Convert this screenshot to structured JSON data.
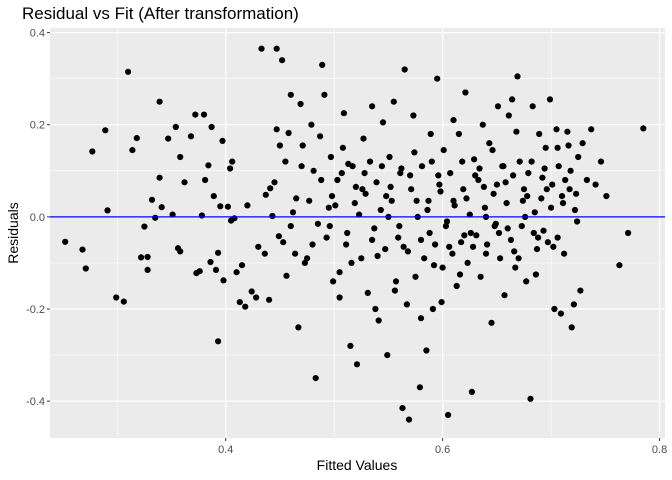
{
  "chart_data": {
    "type": "scatter",
    "title": "Residual vs Fit (After transformation)",
    "xlabel": "Fitted Values",
    "ylabel": "Residuals",
    "xlim": [
      0.238,
      0.805
    ],
    "ylim": [
      -0.48,
      0.41
    ],
    "x_ticks": [
      {
        "value": 0.4,
        "label": "0.4"
      },
      {
        "value": 0.6,
        "label": "0.6"
      },
      {
        "value": 0.8,
        "label": "0.8"
      }
    ],
    "y_ticks": [
      {
        "value": -0.4,
        "label": "-0.4"
      },
      {
        "value": -0.2,
        "label": "-0.2"
      },
      {
        "value": 0.0,
        "label": "0.0"
      },
      {
        "value": 0.2,
        "label": "0.2"
      },
      {
        "value": 0.4,
        "label": "0.4"
      }
    ],
    "grid": true,
    "panel_background": "#ebebeb",
    "grid_color": "#ffffff",
    "point_color": "#000000",
    "reference_line": {
      "y": 0.0,
      "color": "#0000ff"
    },
    "points": [
      [
        0.252,
        -0.054
      ],
      [
        0.268,
        -0.071
      ],
      [
        0.271,
        -0.112
      ],
      [
        0.277,
        0.142
      ],
      [
        0.289,
        0.188
      ],
      [
        0.291,
        0.014
      ],
      [
        0.299,
        -0.175
      ],
      [
        0.306,
        -0.184
      ],
      [
        0.31,
        0.315
      ],
      [
        0.314,
        0.145
      ],
      [
        0.318,
        0.171
      ],
      [
        0.322,
        -0.088
      ],
      [
        0.325,
        -0.021
      ],
      [
        0.328,
        -0.115
      ],
      [
        0.328,
        -0.087
      ],
      [
        0.332,
        0.037
      ],
      [
        0.335,
        -0.002
      ],
      [
        0.339,
        0.085
      ],
      [
        0.339,
        0.25
      ],
      [
        0.341,
        0.021
      ],
      [
        0.347,
        0.17
      ],
      [
        0.351,
        0.005
      ],
      [
        0.354,
        0.195
      ],
      [
        0.356,
        -0.068
      ],
      [
        0.358,
        -0.075
      ],
      [
        0.358,
        0.13
      ],
      [
        0.362,
        0.075
      ],
      [
        0.368,
        0.175
      ],
      [
        0.372,
        0.222
      ],
      [
        0.373,
        -0.122
      ],
      [
        0.376,
        -0.118
      ],
      [
        0.378,
        0.003
      ],
      [
        0.38,
        0.222
      ],
      [
        0.381,
        0.08
      ],
      [
        0.384,
        0.112
      ],
      [
        0.386,
        -0.098
      ],
      [
        0.387,
        0.195
      ],
      [
        0.389,
        0.045
      ],
      [
        0.391,
        -0.115
      ],
      [
        0.393,
        -0.078
      ],
      [
        0.393,
        -0.27
      ],
      [
        0.395,
        0.023
      ],
      [
        0.397,
        0.165
      ],
      [
        0.398,
        -0.138
      ],
      [
        0.402,
        0.022
      ],
      [
        0.404,
        0.105
      ],
      [
        0.405,
        -0.008
      ],
      [
        0.406,
        0.12
      ],
      [
        0.408,
        -0.003
      ],
      [
        0.41,
        -0.12
      ],
      [
        0.413,
        -0.185
      ],
      [
        0.415,
        -0.105
      ],
      [
        0.418,
        -0.195
      ],
      [
        0.42,
        0.025
      ],
      [
        0.424,
        -0.162
      ],
      [
        0.428,
        -0.175
      ],
      [
        0.43,
        -0.065
      ],
      [
        0.433,
        0.365
      ],
      [
        0.436,
        -0.08
      ],
      [
        0.437,
        0.048
      ],
      [
        0.44,
        -0.18
      ],
      [
        0.441,
        0.062
      ],
      [
        0.443,
        0.002
      ],
      [
        0.445,
        0.075
      ],
      [
        0.447,
        0.365
      ],
      [
        0.447,
        0.19
      ],
      [
        0.449,
        -0.042
      ],
      [
        0.45,
        0.155
      ],
      [
        0.452,
        0.34
      ],
      [
        0.453,
        -0.055
      ],
      [
        0.455,
        0.12
      ],
      [
        0.456,
        -0.128
      ],
      [
        0.458,
        0.182
      ],
      [
        0.46,
        0.265
      ],
      [
        0.462,
        0.01
      ],
      [
        0.464,
        -0.08
      ],
      [
        0.465,
        0.04
      ],
      [
        0.467,
        -0.24
      ],
      [
        0.469,
        0.245
      ],
      [
        0.471,
        0.155
      ],
      [
        0.473,
        -0.1
      ],
      [
        0.475,
        -0.09
      ],
      [
        0.477,
        0.035
      ],
      [
        0.479,
        0.2
      ],
      [
        0.481,
        0.1
      ],
      [
        0.483,
        -0.35
      ],
      [
        0.485,
        -0.015
      ],
      [
        0.487,
        0.175
      ],
      [
        0.489,
        0.33
      ],
      [
        0.491,
        0.265
      ],
      [
        0.493,
        -0.045
      ],
      [
        0.495,
        0.02
      ],
      [
        0.497,
        0.13
      ],
      [
        0.499,
        -0.14
      ],
      [
        0.501,
        0.025
      ],
      [
        0.503,
        0.08
      ],
      [
        0.505,
        -0.175
      ],
      [
        0.507,
        0.095
      ],
      [
        0.509,
        0.225
      ],
      [
        0.511,
        -0.06
      ],
      [
        0.513,
        0.115
      ],
      [
        0.515,
        -0.28
      ],
      [
        0.517,
        0.11
      ],
      [
        0.519,
        0.03
      ],
      [
        0.521,
        -0.32
      ],
      [
        0.523,
        0.005
      ],
      [
        0.525,
        -0.09
      ],
      [
        0.527,
        0.17
      ],
      [
        0.529,
        0.05
      ],
      [
        0.531,
        -0.165
      ],
      [
        0.533,
        0.12
      ],
      [
        0.535,
        0.24
      ],
      [
        0.537,
        -0.025
      ],
      [
        0.539,
        0.075
      ],
      [
        0.541,
        -0.225
      ],
      [
        0.543,
        0.015
      ],
      [
        0.545,
        0.205
      ],
      [
        0.547,
        -0.07
      ],
      [
        0.549,
        -0.3
      ],
      [
        0.551,
        0.13
      ],
      [
        0.553,
        0.035
      ],
      [
        0.555,
        0.25
      ],
      [
        0.557,
        -0.14
      ],
      [
        0.559,
        -0.045
      ],
      [
        0.561,
        0.095
      ],
      [
        0.563,
        -0.415
      ],
      [
        0.565,
        0.32
      ],
      [
        0.567,
        -0.19
      ],
      [
        0.569,
        -0.44
      ],
      [
        0.571,
        0.06
      ],
      [
        0.573,
        0.22
      ],
      [
        0.575,
        -0.13
      ],
      [
        0.577,
        0.0
      ],
      [
        0.579,
        -0.37
      ],
      [
        0.581,
        0.11
      ],
      [
        0.583,
        -0.09
      ],
      [
        0.585,
        -0.29
      ],
      [
        0.587,
        0.035
      ],
      [
        0.589,
        0.18
      ],
      [
        0.591,
        -0.2
      ],
      [
        0.593,
        -0.06
      ],
      [
        0.595,
        0.3
      ],
      [
        0.597,
        0.07
      ],
      [
        0.599,
        -0.185
      ],
      [
        0.601,
        0.145
      ],
      [
        0.603,
        -0.02
      ],
      [
        0.605,
        -0.43
      ],
      [
        0.607,
        0.095
      ],
      [
        0.609,
        -0.08
      ],
      [
        0.611,
        0.025
      ],
      [
        0.613,
        -0.15
      ],
      [
        0.615,
        0.18
      ],
      [
        0.617,
        -0.055
      ],
      [
        0.619,
        0.06
      ],
      [
        0.621,
        0.27
      ],
      [
        0.623,
        -0.1
      ],
      [
        0.625,
        0.005
      ],
      [
        0.627,
        -0.38
      ],
      [
        0.629,
        0.125
      ],
      [
        0.631,
        -0.04
      ],
      [
        0.633,
        0.08
      ],
      [
        0.635,
        -0.13
      ],
      [
        0.637,
        0.2
      ],
      [
        0.639,
        0.02
      ],
      [
        0.641,
        -0.06
      ],
      [
        0.643,
        0.16
      ],
      [
        0.645,
        -0.23
      ],
      [
        0.647,
        0.05
      ],
      [
        0.649,
        -0.015
      ],
      [
        0.651,
        0.24
      ],
      [
        0.653,
        -0.09
      ],
      [
        0.655,
        0.11
      ],
      [
        0.657,
        -0.17
      ],
      [
        0.659,
        0.03
      ],
      [
        0.661,
        0.22
      ],
      [
        0.663,
        -0.05
      ],
      [
        0.665,
        0.09
      ],
      [
        0.667,
        -0.11
      ],
      [
        0.669,
        0.305
      ],
      [
        0.671,
        0.12
      ],
      [
        0.673,
        -0.02
      ],
      [
        0.675,
        0.06
      ],
      [
        0.677,
        -0.14
      ],
      [
        0.679,
        0.095
      ],
      [
        0.681,
        -0.395
      ],
      [
        0.683,
        0.24
      ],
      [
        0.685,
        0.01
      ],
      [
        0.687,
        -0.07
      ],
      [
        0.689,
        0.18
      ],
      [
        0.691,
        0.04
      ],
      [
        0.693,
        -0.03
      ],
      [
        0.695,
        0.15
      ],
      [
        0.697,
        -0.055
      ],
      [
        0.699,
        0.255
      ],
      [
        0.701,
        0.07
      ],
      [
        0.703,
        -0.2
      ],
      [
        0.705,
        0.19
      ],
      [
        0.707,
        0.11
      ],
      [
        0.709,
        -0.21
      ],
      [
        0.711,
        0.03
      ],
      [
        0.713,
        0.08
      ],
      [
        0.715,
        0.185
      ],
      [
        0.717,
        0.06
      ],
      [
        0.719,
        -0.24
      ],
      [
        0.721,
        -0.19
      ],
      [
        0.723,
        0.05
      ],
      [
        0.725,
        0.13
      ],
      [
        0.727,
        -0.16
      ],
      [
        0.729,
        0.16
      ],
      [
        0.733,
        0.08
      ],
      [
        0.737,
        0.19
      ],
      [
        0.741,
        0.07
      ],
      [
        0.746,
        0.12
      ],
      [
        0.751,
        0.045
      ],
      [
        0.763,
        -0.105
      ],
      [
        0.771,
        -0.035
      ],
      [
        0.785,
        0.192
      ],
      [
        0.505,
        -0.12
      ],
      [
        0.52,
        0.065
      ],
      [
        0.535,
        -0.05
      ],
      [
        0.548,
        0.045
      ],
      [
        0.556,
        -0.16
      ],
      [
        0.562,
        0.105
      ],
      [
        0.568,
        -0.075
      ],
      [
        0.574,
        0.14
      ],
      [
        0.58,
        -0.22
      ],
      [
        0.586,
        0.015
      ],
      [
        0.592,
        -0.105
      ],
      [
        0.598,
        0.055
      ],
      [
        0.604,
        -0.01
      ],
      [
        0.61,
        0.21
      ],
      [
        0.616,
        -0.125
      ],
      [
        0.622,
        0.04
      ],
      [
        0.628,
        -0.065
      ],
      [
        0.634,
        0.105
      ],
      [
        0.64,
        0.0
      ],
      [
        0.646,
        0.145
      ],
      [
        0.652,
        -0.035
      ],
      [
        0.658,
        0.075
      ],
      [
        0.664,
        0.255
      ],
      [
        0.67,
        -0.09
      ],
      [
        0.676,
        0.0
      ],
      [
        0.682,
        0.12
      ],
      [
        0.688,
        -0.045
      ],
      [
        0.694,
        0.105
      ],
      [
        0.7,
        0.02
      ],
      [
        0.706,
        0.15
      ],
      [
        0.712,
        -0.08
      ],
      [
        0.718,
        0.1
      ],
      [
        0.724,
        -0.01
      ],
      [
        0.488,
        0.08
      ],
      [
        0.496,
        -0.02
      ],
      [
        0.508,
        0.15
      ],
      [
        0.516,
        -0.1
      ],
      [
        0.526,
        0.06
      ],
      [
        0.538,
        -0.2
      ],
      [
        0.544,
        0.11
      ],
      [
        0.55,
        0.0
      ],
      [
        0.56,
        -0.02
      ],
      [
        0.57,
        0.09
      ],
      [
        0.58,
        -0.05
      ],
      [
        0.59,
        0.12
      ],
      [
        0.6,
        -0.11
      ],
      [
        0.61,
        0.035
      ],
      [
        0.62,
        -0.04
      ],
      [
        0.63,
        0.09
      ],
      [
        0.64,
        -0.08
      ],
      [
        0.65,
        0.07
      ],
      [
        0.66,
        -0.025
      ],
      [
        0.668,
        0.185
      ],
      [
        0.678,
        0.045
      ],
      [
        0.686,
        -0.125
      ],
      [
        0.696,
        0.06
      ],
      [
        0.706,
        -0.045
      ],
      [
        0.716,
        0.155
      ],
      [
        0.46,
        -0.02
      ],
      [
        0.47,
        0.11
      ],
      [
        0.48,
        -0.06
      ],
      [
        0.498,
        0.045
      ],
      [
        0.512,
        -0.035
      ],
      [
        0.528,
        0.095
      ],
      [
        0.54,
        -0.085
      ],
      [
        0.552,
        0.065
      ],
      [
        0.564,
        -0.065
      ],
      [
        0.576,
        0.035
      ],
      [
        0.588,
        -0.035
      ],
      [
        0.596,
        0.09
      ],
      [
        0.606,
        -0.065
      ],
      [
        0.618,
        0.12
      ],
      [
        0.626,
        -0.035
      ],
      [
        0.638,
        0.065
      ],
      [
        0.648,
        -0.02
      ],
      [
        0.656,
        0.11
      ],
      [
        0.666,
        -0.075
      ],
      [
        0.674,
        0.035
      ],
      [
        0.684,
        -0.035
      ],
      [
        0.692,
        0.085
      ],
      [
        0.702,
        -0.065
      ],
      [
        0.71,
        0.045
      ],
      [
        0.722,
        0.015
      ]
    ]
  }
}
